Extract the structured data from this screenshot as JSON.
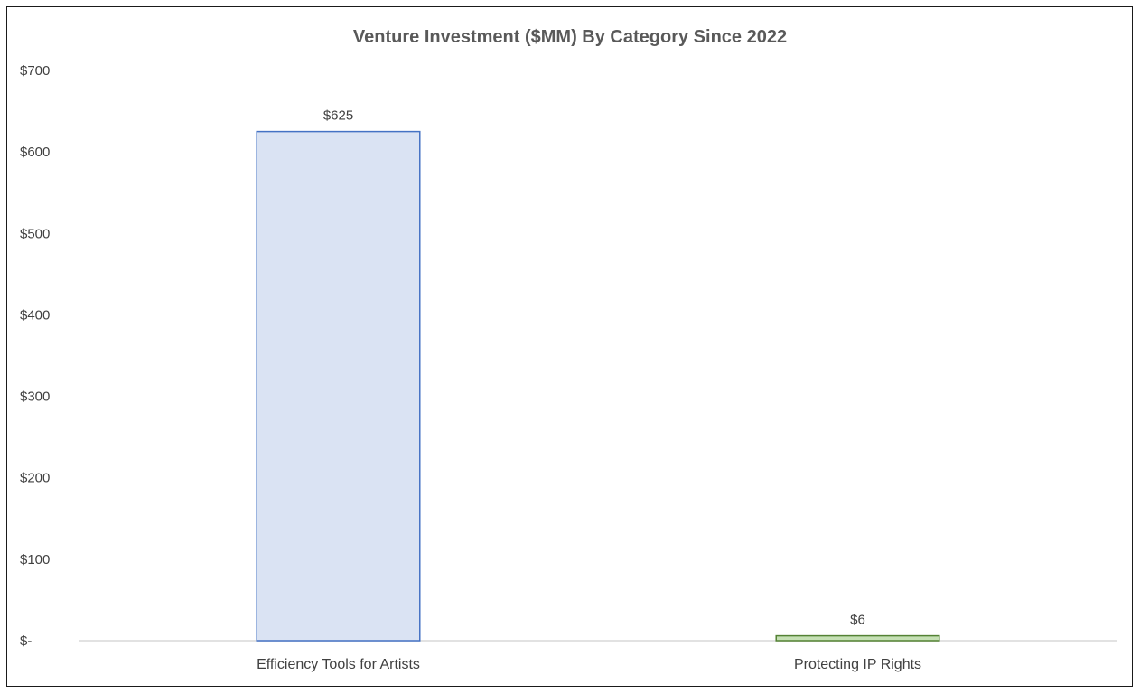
{
  "chart_data": {
    "type": "bar",
    "title": "Venture Investment ($MM) By Category Since 2022",
    "xlabel": "",
    "ylabel": "",
    "categories": [
      "Efficiency Tools for Artists",
      "Protecting IP Rights"
    ],
    "values": [
      625,
      6
    ],
    "data_labels": [
      "$625",
      "$6"
    ],
    "ylim": [
      0,
      700
    ],
    "yticks": [
      0,
      100,
      200,
      300,
      400,
      500,
      600,
      700
    ],
    "ytick_labels": [
      "$-",
      "$100",
      "$200",
      "$300",
      "$400",
      "$500",
      "$600",
      "$700"
    ],
    "grid": false,
    "legend": "none",
    "bar_fills": [
      "#dae3f3",
      "#c5e0b4"
    ],
    "bar_strokes": [
      "#4472c4",
      "#548235"
    ],
    "axis_color": "#d9d9d9"
  }
}
